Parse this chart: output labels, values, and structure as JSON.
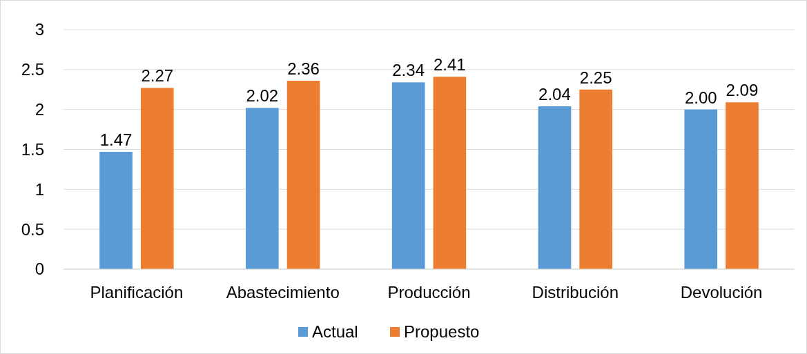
{
  "chart_data": {
    "type": "bar",
    "categories": [
      "Planificación",
      "Abastecimiento",
      "Producción",
      "Distribución",
      "Devolución"
    ],
    "series": [
      {
        "name": "Actual",
        "color": "#5b9bd5",
        "values": [
          1.47,
          2.02,
          2.34,
          2.04,
          2.0
        ],
        "value_labels": [
          "1.47",
          "2.02",
          "2.34",
          "2.04",
          "2.00"
        ]
      },
      {
        "name": "Propuesto",
        "color": "#ed7d31",
        "values": [
          2.27,
          2.36,
          2.41,
          2.25,
          2.09
        ],
        "value_labels": [
          "2.27",
          "2.36",
          "2.41",
          "2.25",
          "2.09"
        ]
      }
    ],
    "ylim": [
      0,
      3
    ],
    "yticks": [
      0,
      0.5,
      1,
      1.5,
      2,
      2.5,
      3
    ],
    "grid": "y",
    "legend": "bottom"
  }
}
